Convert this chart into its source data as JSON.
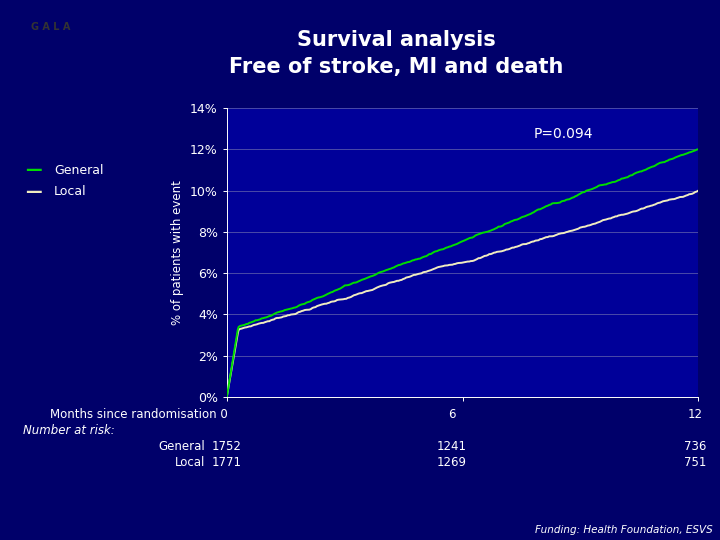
{
  "title_line1": "Survival analysis",
  "title_line2": "Free of stroke, MI and death",
  "bg_dark": "#00006A",
  "bg_plot": "#000099",
  "title_color": "#FFFFFF",
  "general_color": "#00DD00",
  "local_color": "#F0ECC0",
  "grid_color": "#5555AA",
  "p_value_text": "P=0.094",
  "ylabel": "% of patients with event",
  "xlabel_text": "Months since randomisation 0",
  "ytick_labels": [
    "0%",
    "2%",
    "4%",
    "6%",
    "8%",
    "10%",
    "12%",
    "14%"
  ],
  "ytick_vals": [
    0,
    2,
    4,
    6,
    8,
    10,
    12,
    14
  ],
  "xtick_vals": [
    0,
    6,
    12
  ],
  "xtick_labels": [
    "0",
    "6",
    "12"
  ],
  "xlim": [
    0,
    12
  ],
  "ylim": [
    0,
    14
  ],
  "number_at_risk_label": "Number at risk:",
  "general_label": "General",
  "local_label": "Local",
  "risk_general": [
    "1752",
    "1241",
    "736"
  ],
  "risk_local": [
    "1771",
    "1269",
    "751"
  ],
  "funding_text": "Funding: Health Foundation, ESVS",
  "gala_text": "G A L A"
}
